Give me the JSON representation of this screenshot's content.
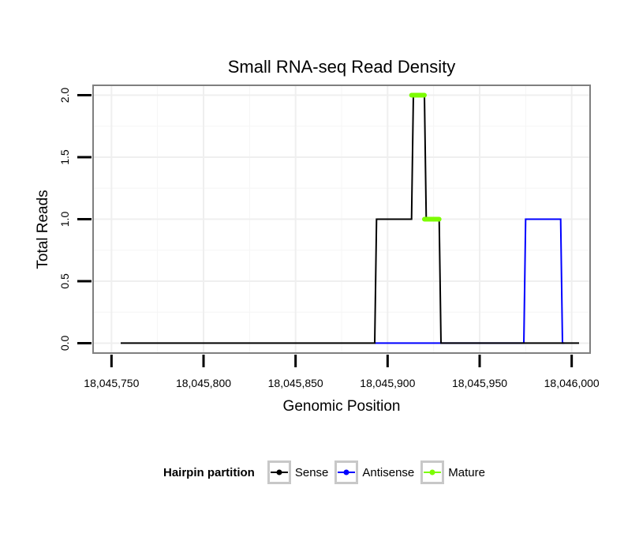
{
  "chart_data": {
    "type": "line",
    "title": "Small RNA-seq Read Density",
    "xlabel": "Genomic Position",
    "ylabel": "Total Reads",
    "xlim": [
      18045740,
      18046010
    ],
    "ylim": [
      -0.08,
      2.08
    ],
    "xticks": [
      18045750,
      18045800,
      18045850,
      18045900,
      18045950,
      18046000
    ],
    "xtick_labels": [
      "18,045,750",
      "18,045,800",
      "18,045,850",
      "18,045,900",
      "18,045,950",
      "18,046,000"
    ],
    "yticks": [
      0,
      0.5,
      1,
      1.5,
      2
    ],
    "ytick_labels": [
      "0.0",
      "0.5",
      "1.0",
      "1.5",
      "2.0"
    ],
    "grid": true,
    "series": [
      {
        "name": "Sense",
        "color": "#000000",
        "x": [
          18045755,
          18045893,
          18045894,
          18045913,
          18045914,
          18045920,
          18045921,
          18045928,
          18045929,
          18046004
        ],
        "y": [
          0,
          0,
          1,
          1,
          2,
          2,
          1,
          1,
          0,
          0
        ]
      },
      {
        "name": "Antisense",
        "color": "#0000ff",
        "x": [
          18045893,
          18045974,
          18045975,
          18045994,
          18045995,
          18045996
        ],
        "y": [
          0,
          0,
          1,
          1,
          0,
          0
        ]
      },
      {
        "name": "Mature",
        "color": "#7cfc00",
        "segments": [
          {
            "x": [
              18045913,
              18045920
            ],
            "y": [
              2,
              2
            ]
          },
          {
            "x": [
              18045920,
              18045928
            ],
            "y": [
              1,
              1
            ]
          }
        ]
      }
    ],
    "legend_title": "Hairpin partition",
    "legend_position": "bottom",
    "legend": [
      "Sense",
      "Antisense",
      "Mature"
    ]
  }
}
